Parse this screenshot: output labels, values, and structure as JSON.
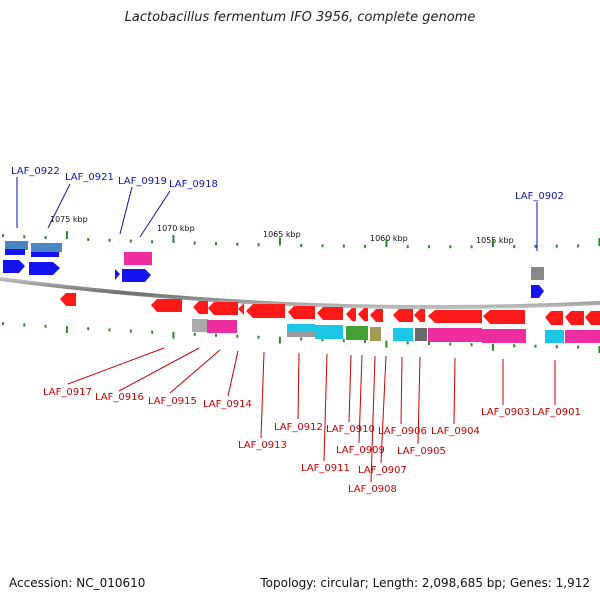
{
  "title": "Lactobacillus fermentum IFO 3956, complete genome",
  "footer": {
    "accession": "Accession: NC_010610",
    "topology": "Topology: circular; Length: 2,098,685 bp; Genes: 1,912"
  },
  "colors": {
    "plus_strand_label": "#0b16b8",
    "minus_strand_label": "#cc0000",
    "red": "#ff1a1a",
    "blue": "#1414ee",
    "magenta": "#ee2e9e",
    "cyan": "#1cc6e6",
    "steel": "#4a86c4",
    "gray": "#888888",
    "green": "#45a035",
    "olive": "#a49a56",
    "tick": "#2a8a2a",
    "backbone": "#8a8a8a"
  },
  "kbp_ticks": [
    "1075 kbp",
    "1070 kbp",
    "1065 kbp",
    "1060 kbp",
    "1055 kbp"
  ],
  "genes_top": [
    {
      "name": "LAF_0922",
      "kind": "label"
    },
    {
      "name": "LAF_0921",
      "kind": "label"
    },
    {
      "name": "LAF_0919",
      "kind": "label"
    },
    {
      "name": "LAF_0918",
      "kind": "label"
    },
    {
      "name": "LAF_0902",
      "kind": "label"
    }
  ],
  "genes_bottom": [
    {
      "name": "LAF_0917"
    },
    {
      "name": "LAF_0916"
    },
    {
      "name": "LAF_0915"
    },
    {
      "name": "LAF_0914"
    },
    {
      "name": "LAF_0913"
    },
    {
      "name": "LAF_0912"
    },
    {
      "name": "LAF_0911"
    },
    {
      "name": "LAF_0910"
    },
    {
      "name": "LAF_0909"
    },
    {
      "name": "LAF_0908"
    },
    {
      "name": "LAF_0907"
    },
    {
      "name": "LAF_0906"
    },
    {
      "name": "LAF_0905"
    },
    {
      "name": "LAF_0904"
    },
    {
      "name": "LAF_0903"
    },
    {
      "name": "LAF_0901"
    }
  ]
}
